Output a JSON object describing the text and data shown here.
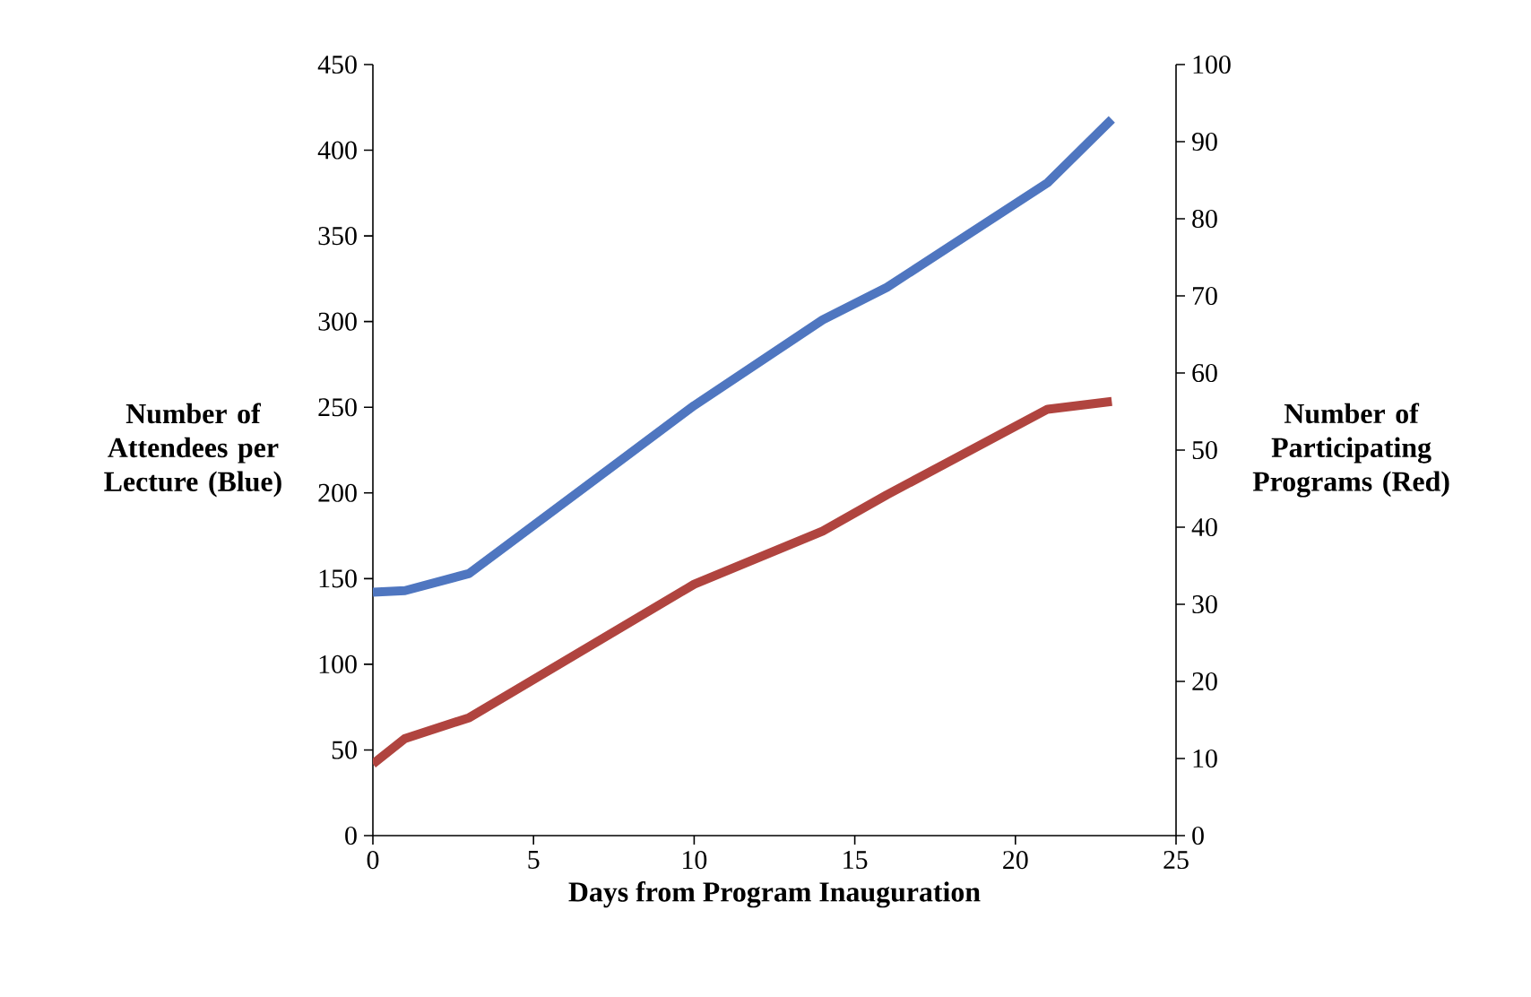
{
  "chart_data": {
    "type": "line",
    "xlabel": "Days from Program Inauguration",
    "ylabel": "Number of Attendees per Lecture (Blue)",
    "y2label": "Number of Participating Programs (Red)",
    "x": [
      0,
      1,
      3,
      10,
      14,
      16,
      21,
      23
    ],
    "series": [
      {
        "color": "#4f76c0",
        "values": [
          142,
          143,
          153,
          251,
          301,
          320,
          381,
          418
        ]
      },
      {
        "color": "#b0443f",
        "axis": "y2",
        "values": [
          9.3,
          12.6,
          15.3,
          32.6,
          39.5,
          44.2,
          55.3,
          56.3
        ]
      }
    ],
    "xlim": [
      0,
      25
    ],
    "xticks": [
      0,
      5,
      10,
      15,
      20,
      25
    ],
    "ylim": [
      0,
      450
    ],
    "yticks": [
      0,
      50,
      100,
      150,
      200,
      250,
      300,
      350,
      400,
      450
    ],
    "y2lim": [
      0,
      100
    ],
    "y2ticks": [
      0,
      10,
      20,
      30,
      40,
      50,
      60,
      70,
      80,
      90,
      100
    ]
  }
}
